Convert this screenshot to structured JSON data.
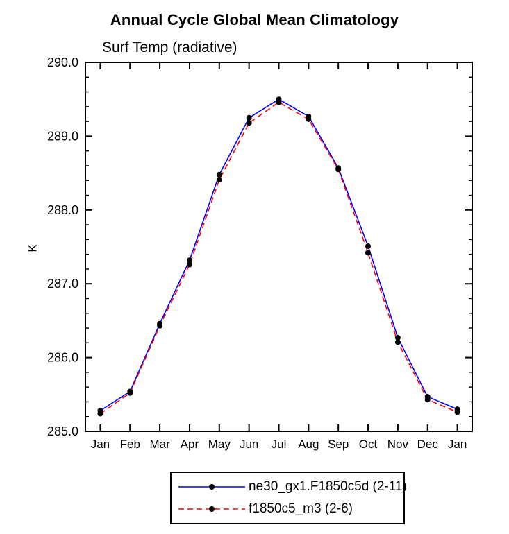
{
  "chart_data": {
    "type": "line",
    "title": "Annual Cycle Global Mean Climatology",
    "subtitle": "Surf Temp (radiative)",
    "ylabel": "K",
    "xlabel": "",
    "ylim": [
      285.0,
      290.0
    ],
    "ytick_major": 1.0,
    "ytick_minor": 0.2,
    "grid": false,
    "legend_position": "bottom-center",
    "frame_color": "#000000",
    "categories": [
      "Jan",
      "Feb",
      "Mar",
      "Apr",
      "May",
      "Jun",
      "Jul",
      "Aug",
      "Sep",
      "Oct",
      "Nov",
      "Dec",
      "Jan"
    ],
    "series": [
      {
        "name": "ne30_gx1.F1850c5d (2-11)",
        "color": "#0000ff",
        "dashed": false,
        "marker": "filled-circle",
        "marker_color": "#000000",
        "values": [
          285.28,
          285.54,
          286.46,
          287.32,
          288.48,
          289.25,
          289.5,
          289.27,
          288.57,
          287.51,
          286.27,
          285.47,
          285.3
        ]
      },
      {
        "name": "f1850c5_m3 (2-6)",
        "color": "#ff0000",
        "dashed": true,
        "marker": "filled-circle",
        "marker_color": "#000000",
        "values": [
          285.24,
          285.52,
          286.43,
          287.26,
          288.41,
          289.18,
          289.46,
          289.23,
          288.55,
          287.42,
          286.21,
          285.43,
          285.26
        ]
      }
    ]
  }
}
